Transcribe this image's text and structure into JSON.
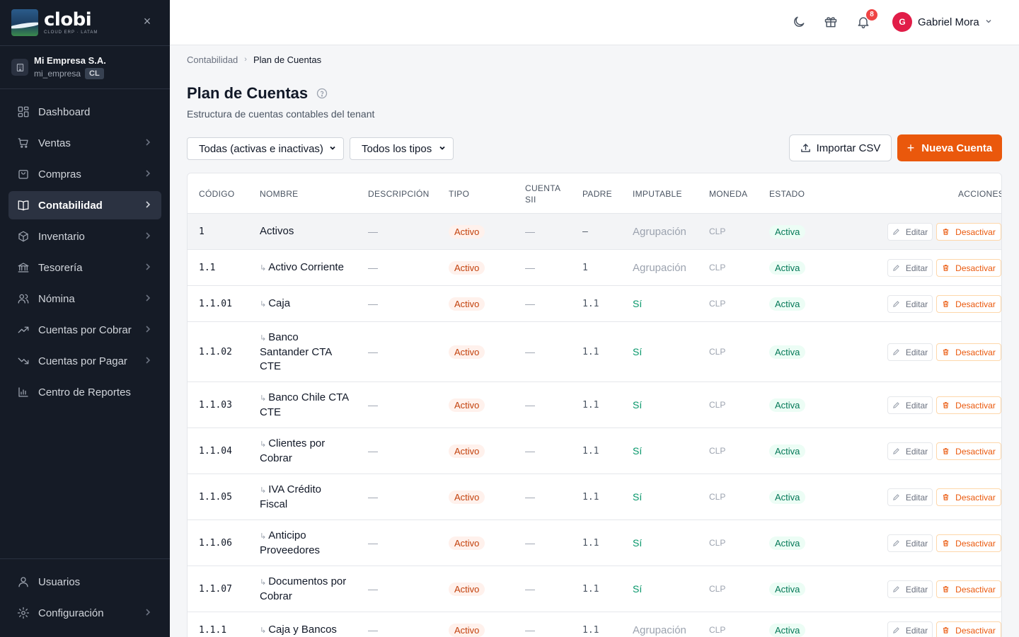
{
  "brand": {
    "name": "clobi",
    "tagline": "CLOUD ERP · LATAM"
  },
  "company": {
    "name": "Mi Empresa S.A.",
    "slug": "mi_empresa",
    "country": "CL"
  },
  "nav": [
    {
      "label": "Dashboard",
      "icon": "dashboard-icon",
      "chevron": false,
      "active": false
    },
    {
      "label": "Ventas",
      "icon": "cart-icon",
      "chevron": true,
      "active": false
    },
    {
      "label": "Compras",
      "icon": "bag-icon",
      "chevron": true,
      "active": false
    },
    {
      "label": "Contabilidad",
      "icon": "book-icon",
      "chevron": true,
      "active": true
    },
    {
      "label": "Inventario",
      "icon": "box-icon",
      "chevron": true,
      "active": false
    },
    {
      "label": "Tesorería",
      "icon": "bank-icon",
      "chevron": true,
      "active": false
    },
    {
      "label": "Nómina",
      "icon": "users-icon",
      "chevron": true,
      "active": false
    },
    {
      "label": "Cuentas por Cobrar",
      "icon": "trend-up-icon",
      "chevron": true,
      "active": false
    },
    {
      "label": "Cuentas por Pagar",
      "icon": "trend-down-icon",
      "chevron": true,
      "active": false
    },
    {
      "label": "Centro de Reportes",
      "icon": "bar-chart-icon",
      "chevron": false,
      "active": false
    }
  ],
  "nav_bottom": [
    {
      "label": "Usuarios",
      "icon": "user-icon",
      "chevron": false
    },
    {
      "label": "Configuración",
      "icon": "gear-icon",
      "chevron": true
    }
  ],
  "header": {
    "notifications": "8",
    "user_name": "Gabriel Mora",
    "user_initial": "G"
  },
  "breadcrumb": {
    "parent": "Contabilidad",
    "current": "Plan de Cuentas"
  },
  "page": {
    "title": "Plan de Cuentas",
    "subtitle": "Estructura de cuentas contables del tenant"
  },
  "filters": {
    "status": "Todas (activas e inactivas)",
    "type": "Todos los tipos"
  },
  "buttons": {
    "import": "Importar CSV",
    "new": "Nueva Cuenta"
  },
  "table": {
    "headers": {
      "codigo": "CÓDIGO",
      "nombre": "NOMBRE",
      "descripcion": "DESCRIPCIÓN",
      "tipo": "TIPO",
      "cuenta_sii_1": "CUENTA",
      "cuenta_sii_2": "SII",
      "padre": "PADRE",
      "imputable": "IMPUTABLE",
      "moneda": "MONEDA",
      "estado": "ESTADO",
      "acciones": "ACCIONES"
    },
    "edit_label": "Editar",
    "deactivate_label": "Desactivar",
    "rows": [
      {
        "code": "1",
        "child": false,
        "name": "Activos",
        "desc": "—",
        "tipo": "Activo",
        "sii": "—",
        "parent": "–",
        "imputable": "Agrupación",
        "moneda": "CLP",
        "estado": "Activa"
      },
      {
        "code": "1.1",
        "child": true,
        "name": "Activo Corriente",
        "desc": "—",
        "tipo": "Activo",
        "sii": "—",
        "parent": "1",
        "imputable": "Agrupación",
        "moneda": "CLP",
        "estado": "Activa"
      },
      {
        "code": "1.1.01",
        "child": true,
        "name": "Caja",
        "desc": "—",
        "tipo": "Activo",
        "sii": "—",
        "parent": "1.1",
        "imputable": "Sí",
        "moneda": "CLP",
        "estado": "Activa"
      },
      {
        "code": "1.1.02",
        "child": true,
        "name": "Banco Santander CTA CTE",
        "desc": "—",
        "tipo": "Activo",
        "sii": "—",
        "parent": "1.1",
        "imputable": "Sí",
        "moneda": "CLP",
        "estado": "Activa"
      },
      {
        "code": "1.1.03",
        "child": true,
        "name": "Banco Chile CTA CTE",
        "desc": "—",
        "tipo": "Activo",
        "sii": "—",
        "parent": "1.1",
        "imputable": "Sí",
        "moneda": "CLP",
        "estado": "Activa"
      },
      {
        "code": "1.1.04",
        "child": true,
        "name": "Clientes por Cobrar",
        "desc": "—",
        "tipo": "Activo",
        "sii": "—",
        "parent": "1.1",
        "imputable": "Sí",
        "moneda": "CLP",
        "estado": "Activa"
      },
      {
        "code": "1.1.05",
        "child": true,
        "name": "IVA Crédito Fiscal",
        "desc": "—",
        "tipo": "Activo",
        "sii": "—",
        "parent": "1.1",
        "imputable": "Sí",
        "moneda": "CLP",
        "estado": "Activa"
      },
      {
        "code": "1.1.06",
        "child": true,
        "name": "Anticipo Proveedores",
        "desc": "—",
        "tipo": "Activo",
        "sii": "—",
        "parent": "1.1",
        "imputable": "Sí",
        "moneda": "CLP",
        "estado": "Activa"
      },
      {
        "code": "1.1.07",
        "child": true,
        "name": "Documentos por Cobrar",
        "desc": "—",
        "tipo": "Activo",
        "sii": "—",
        "parent": "1.1",
        "imputable": "Sí",
        "moneda": "CLP",
        "estado": "Activa"
      },
      {
        "code": "1.1.1",
        "child": true,
        "name": "Caja y Bancos",
        "desc": "—",
        "tipo": "Activo",
        "sii": "—",
        "parent": "1.1",
        "imputable": "Agrupación",
        "moneda": "CLP",
        "estado": "Activa"
      }
    ]
  }
}
